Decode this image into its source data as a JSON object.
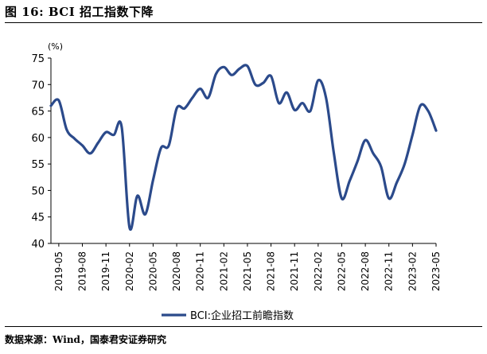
{
  "figure": {
    "title": "图 16:  BCI 招工指数下降",
    "source": "数据来源：Wind，国泰君安证券研究"
  },
  "chart_data": {
    "type": "line",
    "ylabel": "(%)",
    "ylim": [
      40,
      75
    ],
    "yticks": [
      40,
      45,
      50,
      55,
      60,
      65,
      70,
      75
    ],
    "xtick_labels": [
      "2019-05",
      "2019-08",
      "2019-11",
      "2020-02",
      "2020-05",
      "2020-08",
      "2020-11",
      "2021-02",
      "2021-05",
      "2021-08",
      "2021-11",
      "2022-02",
      "2022-05",
      "2022-08",
      "2022-11",
      "2023-02",
      "2023-05"
    ],
    "grid": false,
    "legend_position": "bottom",
    "series": [
      {
        "name": "BCI:企业招工前瞻指数",
        "color": "#2B4A8B",
        "x": [
          "2019-04",
          "2019-05",
          "2019-06",
          "2019-07",
          "2019-08",
          "2019-09",
          "2019-10",
          "2019-11",
          "2019-12",
          "2020-01",
          "2020-02",
          "2020-03",
          "2020-04",
          "2020-05",
          "2020-06",
          "2020-07",
          "2020-08",
          "2020-09",
          "2020-10",
          "2020-11",
          "2020-12",
          "2021-01",
          "2021-02",
          "2021-03",
          "2021-04",
          "2021-05",
          "2021-06",
          "2021-07",
          "2021-08",
          "2021-09",
          "2021-10",
          "2021-11",
          "2021-12",
          "2022-01",
          "2022-02",
          "2022-03",
          "2022-04",
          "2022-05",
          "2022-06",
          "2022-07",
          "2022-08",
          "2022-09",
          "2022-10",
          "2022-11",
          "2022-12",
          "2023-01",
          "2023-02",
          "2023-03",
          "2023-04",
          "2023-05"
        ],
        "values": [
          66.0,
          67.0,
          61.5,
          59.8,
          58.5,
          57.0,
          59.0,
          61.0,
          60.5,
          62.0,
          43.0,
          49.0,
          45.5,
          52.0,
          58.0,
          58.5,
          65.5,
          65.5,
          67.5,
          69.2,
          67.5,
          72.0,
          73.3,
          71.8,
          73.0,
          73.5,
          70.0,
          70.3,
          71.6,
          66.5,
          68.5,
          65.2,
          66.5,
          65.0,
          70.8,
          67.5,
          57.0,
          48.5,
          51.8,
          55.5,
          59.5,
          57.0,
          54.5,
          48.5,
          51.5,
          55.0,
          60.5,
          66.0,
          65.0,
          61.3
        ]
      }
    ]
  }
}
